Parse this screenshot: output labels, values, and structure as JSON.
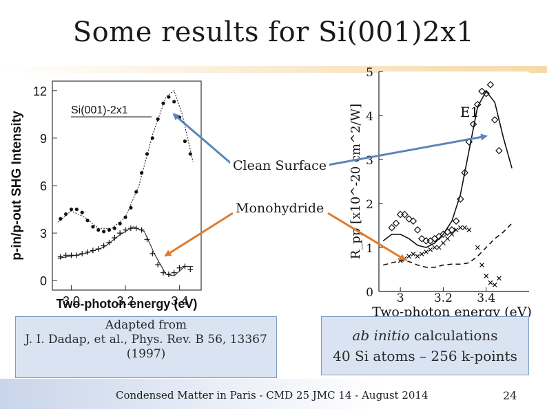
{
  "slide": {
    "title": "Some results for Si(001)2x1",
    "callout_clean": "Clean Surface",
    "callout_mono": "Monohydride",
    "source_line1": "Adapted from",
    "source_line2": "J. I. Dadap, et al., Phys. Rev. B 56, 13367",
    "source_line3": "(1997)",
    "calc_line1_em": "ab initio",
    "calc_line1_rest": " calculations",
    "calc_line2": "40 Si atoms – 256 k-points",
    "footer": "Condensed Matter in Paris - CMD 25 JMC 14 -  August 2014",
    "page_number": "24"
  },
  "colors": {
    "arrow_blue": "#5b84b8",
    "arrow_orange": "#e07a2a",
    "box_fill": "#d9e3f2",
    "box_border": "#7a9cc7"
  },
  "chart_data": [
    {
      "type": "scatter",
      "title": "Si(001)-2x1",
      "xlabel": "Two-photon energy (eV)",
      "ylabel": "p-in/p-out SHG Intensity",
      "xlim": [
        2.93,
        3.48
      ],
      "ylim": [
        -0.6,
        12.6
      ],
      "xticks": [
        3.0,
        3.2,
        3.4
      ],
      "xtick_labels": [
        "3.0",
        "3.2",
        "3.4"
      ],
      "yticks": [
        0,
        3,
        6,
        9,
        12
      ],
      "ytick_labels": [
        "0",
        "3",
        "6",
        "9",
        "12"
      ],
      "series": [
        {
          "marker": "dot",
          "points": [
            [
              2.96,
              3.9
            ],
            [
              2.98,
              4.2
            ],
            [
              3.0,
              4.5
            ],
            [
              3.02,
              4.5
            ],
            [
              3.04,
              4.3
            ],
            [
              3.06,
              3.8
            ],
            [
              3.08,
              3.4
            ],
            [
              3.1,
              3.2
            ],
            [
              3.12,
              3.1
            ],
            [
              3.14,
              3.2
            ],
            [
              3.16,
              3.3
            ],
            [
              3.18,
              3.6
            ],
            [
              3.2,
              4.0
            ],
            [
              3.22,
              4.6
            ],
            [
              3.24,
              5.6
            ],
            [
              3.26,
              6.8
            ],
            [
              3.28,
              8.0
            ],
            [
              3.3,
              9.0
            ],
            [
              3.32,
              10.2
            ],
            [
              3.34,
              11.2
            ],
            [
              3.36,
              11.6
            ],
            [
              3.38,
              11.3
            ],
            [
              3.4,
              10.3
            ],
            [
              3.42,
              8.8
            ],
            [
              3.44,
              8.0
            ]
          ],
          "curve": [
            [
              2.95,
              3.7
            ],
            [
              3.0,
              4.4
            ],
            [
              3.05,
              4.0
            ],
            [
              3.1,
              3.3
            ],
            [
              3.15,
              3.3
            ],
            [
              3.2,
              4.0
            ],
            [
              3.25,
              6.0
            ],
            [
              3.3,
              9.2
            ],
            [
              3.35,
              11.6
            ],
            [
              3.38,
              12.0
            ],
            [
              3.41,
              10.5
            ],
            [
              3.45,
              7.5
            ]
          ]
        },
        {
          "marker": "plus",
          "points": [
            [
              2.96,
              1.5
            ],
            [
              2.98,
              1.6
            ],
            [
              3.0,
              1.6
            ],
            [
              3.02,
              1.6
            ],
            [
              3.04,
              1.7
            ],
            [
              3.06,
              1.8
            ],
            [
              3.08,
              1.9
            ],
            [
              3.1,
              2.0
            ],
            [
              3.12,
              2.2
            ],
            [
              3.14,
              2.4
            ],
            [
              3.16,
              2.7
            ],
            [
              3.18,
              3.0
            ],
            [
              3.2,
              3.2
            ],
            [
              3.22,
              3.3
            ],
            [
              3.24,
              3.3
            ],
            [
              3.26,
              3.2
            ],
            [
              3.28,
              2.6
            ],
            [
              3.3,
              1.7
            ],
            [
              3.32,
              1.0
            ],
            [
              3.34,
              0.5
            ],
            [
              3.36,
              0.4
            ],
            [
              3.38,
              0.5
            ],
            [
              3.4,
              0.8
            ],
            [
              3.42,
              0.9
            ],
            [
              3.44,
              0.7
            ]
          ],
          "curve": [
            [
              2.95,
              1.4
            ],
            [
              3.05,
              1.7
            ],
            [
              3.12,
              2.1
            ],
            [
              3.18,
              2.9
            ],
            [
              3.23,
              3.4
            ],
            [
              3.27,
              3.1
            ],
            [
              3.31,
              1.6
            ],
            [
              3.35,
              0.4
            ],
            [
              3.38,
              0.3
            ],
            [
              3.42,
              0.9
            ],
            [
              3.45,
              0.9
            ]
          ]
        }
      ]
    },
    {
      "type": "scatter",
      "xlabel": "Two-photon energy (eV)",
      "ylabel": "R_pp [x10^-20 cm^2/W]",
      "annotation": "E1",
      "xlim": [
        2.9,
        3.6
      ],
      "ylim": [
        0,
        5
      ],
      "xticks": [
        3.0,
        3.2,
        3.4
      ],
      "xtick_labels": [
        "3",
        "3.2",
        "3.4"
      ],
      "yticks": [
        0,
        1,
        2,
        3,
        4,
        5
      ],
      "ytick_labels": [
        "0",
        "1",
        "2",
        "3",
        "4",
        "5"
      ],
      "series": [
        {
          "marker": "diamond",
          "points": [
            [
              2.96,
              1.45
            ],
            [
              2.98,
              1.55
            ],
            [
              3.0,
              1.75
            ],
            [
              3.02,
              1.75
            ],
            [
              3.04,
              1.65
            ],
            [
              3.06,
              1.6
            ],
            [
              3.08,
              1.4
            ],
            [
              3.1,
              1.2
            ],
            [
              3.12,
              1.15
            ],
            [
              3.14,
              1.15
            ],
            [
              3.16,
              1.2
            ],
            [
              3.18,
              1.25
            ],
            [
              3.2,
              1.3
            ],
            [
              3.22,
              1.35
            ],
            [
              3.24,
              1.4
            ],
            [
              3.26,
              1.6
            ],
            [
              3.28,
              2.1
            ],
            [
              3.3,
              2.7
            ],
            [
              3.32,
              3.4
            ],
            [
              3.34,
              3.8
            ],
            [
              3.36,
              4.25
            ],
            [
              3.38,
              4.55
            ],
            [
              3.4,
              4.5
            ],
            [
              3.42,
              4.7
            ],
            [
              3.44,
              3.9
            ],
            [
              3.46,
              3.2
            ]
          ]
        },
        {
          "marker": "cross",
          "points": [
            [
              3.0,
              0.7
            ],
            [
              3.02,
              0.75
            ],
            [
              3.04,
              0.8
            ],
            [
              3.06,
              0.85
            ],
            [
              3.08,
              0.8
            ],
            [
              3.1,
              0.85
            ],
            [
              3.12,
              0.9
            ],
            [
              3.14,
              0.95
            ],
            [
              3.16,
              1.0
            ],
            [
              3.18,
              1.0
            ],
            [
              3.2,
              1.1
            ],
            [
              3.22,
              1.2
            ],
            [
              3.24,
              1.3
            ],
            [
              3.26,
              1.4
            ],
            [
              3.28,
              1.45
            ],
            [
              3.3,
              1.45
            ],
            [
              3.32,
              1.4
            ],
            [
              3.36,
              1.0
            ],
            [
              3.38,
              0.6
            ],
            [
              3.4,
              0.35
            ],
            [
              3.42,
              0.2
            ],
            [
              3.44,
              0.15
            ],
            [
              3.46,
              0.3
            ]
          ]
        },
        {
          "line": "solid",
          "points": [
            [
              2.92,
              1.15
            ],
            [
              2.96,
              1.3
            ],
            [
              3.0,
              1.3
            ],
            [
              3.04,
              1.2
            ],
            [
              3.08,
              1.05
            ],
            [
              3.12,
              1.0
            ],
            [
              3.16,
              1.1
            ],
            [
              3.2,
              1.3
            ],
            [
              3.24,
              1.6
            ],
            [
              3.28,
              2.2
            ],
            [
              3.32,
              3.2
            ],
            [
              3.36,
              4.2
            ],
            [
              3.4,
              4.55
            ],
            [
              3.44,
              4.3
            ],
            [
              3.48,
              3.5
            ],
            [
              3.52,
              2.8
            ]
          ]
        },
        {
          "line": "dashed",
          "points": [
            [
              2.92,
              0.6
            ],
            [
              2.96,
              0.65
            ],
            [
              3.0,
              0.7
            ],
            [
              3.04,
              0.68
            ],
            [
              3.08,
              0.6
            ],
            [
              3.12,
              0.55
            ],
            [
              3.16,
              0.55
            ],
            [
              3.2,
              0.6
            ],
            [
              3.24,
              0.62
            ],
            [
              3.28,
              0.62
            ],
            [
              3.32,
              0.65
            ],
            [
              3.36,
              0.8
            ],
            [
              3.4,
              1.0
            ],
            [
              3.44,
              1.2
            ],
            [
              3.48,
              1.35
            ],
            [
              3.52,
              1.55
            ]
          ]
        }
      ]
    }
  ]
}
